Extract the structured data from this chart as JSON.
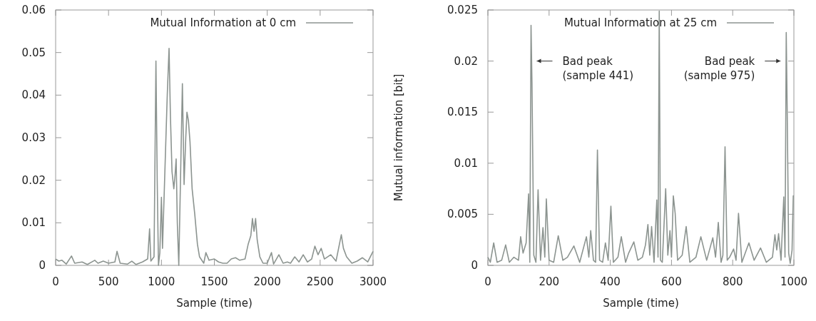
{
  "chart_data": [
    {
      "type": "line",
      "xlabel": "Sample (time)",
      "xlim": [
        0,
        3000
      ],
      "ylim": [
        0,
        0.06
      ],
      "xticks": [
        0,
        500,
        1000,
        1500,
        2000,
        2500,
        3000
      ],
      "yticks": [
        0,
        0.01,
        0.02,
        0.03,
        0.04,
        0.05,
        0.06
      ],
      "grid": false,
      "legend": "top right",
      "line_style": "solid",
      "series": [
        {
          "name": "Mutual Information at 0 cm",
          "color": "#8c9490",
          "x": [
            0,
            30,
            60,
            100,
            150,
            180,
            250,
            300,
            370,
            400,
            450,
            500,
            560,
            580,
            610,
            680,
            720,
            760,
            820,
            870,
            888,
            900,
            930,
            948,
            960,
            972,
            985,
            1000,
            1010,
            1030,
            1055,
            1072,
            1085,
            1100,
            1117,
            1128,
            1139,
            1150,
            1164,
            1180,
            1198,
            1214,
            1230,
            1241,
            1255,
            1270,
            1290,
            1315,
            1340,
            1360,
            1400,
            1420,
            1450,
            1500,
            1540,
            1580,
            1620,
            1660,
            1700,
            1740,
            1790,
            1820,
            1845,
            1860,
            1875,
            1890,
            1905,
            1930,
            1960,
            2000,
            2040,
            2060,
            2110,
            2150,
            2190,
            2220,
            2260,
            2300,
            2340,
            2380,
            2420,
            2450,
            2480,
            2510,
            2540,
            2600,
            2650,
            2700,
            2720,
            2750,
            2800,
            2850,
            2900,
            2950,
            3000
          ],
          "values": [
            0.0015,
            0.001,
            0.0012,
            0.0003,
            0.0022,
            0.0005,
            0.0008,
            0.0002,
            0.0012,
            0.0005,
            0.001,
            0.0005,
            0.0008,
            0.0033,
            0.0005,
            0.0003,
            0.001,
            0.0002,
            0.0008,
            0.0015,
            0.0086,
            0.001,
            0.002,
            0.048,
            0.02,
            0,
            0.003,
            0.016,
            0.004,
            0.02,
            0.04,
            0.051,
            0.035,
            0.022,
            0.018,
            0.021,
            0.025,
            0.01,
            0,
            0.02,
            0.0427,
            0.019,
            0.03,
            0.036,
            0.034,
            0.029,
            0.018,
            0.012,
            0.005,
            0.002,
            0.0005,
            0.003,
            0.0012,
            0.0015,
            0.0008,
            0.0005,
            0.0005,
            0.0015,
            0.0018,
            0.0012,
            0.0015,
            0.005,
            0.007,
            0.011,
            0.008,
            0.011,
            0.006,
            0.002,
            0.0005,
            0.0005,
            0.003,
            0.0003,
            0.0025,
            0.0005,
            0.0008,
            0.0005,
            0.002,
            0.0008,
            0.0025,
            0.0008,
            0.0015,
            0.0045,
            0.0025,
            0.004,
            0.0015,
            0.0025,
            0.001,
            0.0072,
            0.004,
            0.002,
            0.0005,
            0.001,
            0.0018,
            0.0008,
            0.0033
          ]
        }
      ]
    },
    {
      "type": "line",
      "xlabel": "Sample (time)",
      "ylabel": "Mutual information [bit]",
      "xlim": [
        0,
        1000
      ],
      "ylim": [
        0,
        0.025
      ],
      "xticks": [
        0,
        200,
        400,
        600,
        800,
        1000
      ],
      "yticks": [
        0,
        0.005,
        0.01,
        0.015,
        0.02,
        0.025
      ],
      "grid": false,
      "legend": "top right",
      "line_style": "solid",
      "annotations": [
        {
          "text": "Bad peak\n(sample 441)",
          "x": 141,
          "y": 0.02
        },
        {
          "text": "Bad peak\n(sample 975)",
          "x": 975,
          "y": 0.02
        }
      ],
      "series": [
        {
          "name": "Mutual Information at 25 cm",
          "color": "#8c9490",
          "x": [
            0,
            8,
            19,
            30,
            45,
            58,
            70,
            85,
            100,
            107,
            115,
            125,
            133,
            137,
            141,
            144,
            150,
            157,
            164,
            172,
            180,
            186,
            191,
            200,
            215,
            230,
            245,
            260,
            281,
            300,
            322,
            330,
            336,
            345,
            352,
            358,
            365,
            375,
            384,
            393,
            402,
            410,
            425,
            436,
            450,
            460,
            477,
            490,
            505,
            515,
            523,
            529,
            535,
            543,
            552,
            556,
            560,
            564,
            570,
            581,
            588,
            595,
            600,
            606,
            612,
            620,
            635,
            648,
            660,
            680,
            696,
            715,
            735,
            744,
            753,
            762,
            768,
            775,
            782,
            790,
            803,
            811,
            819,
            830,
            853,
            870,
            891,
            910,
            930,
            938,
            944,
            950,
            958,
            967,
            971,
            975,
            978,
            983,
            988,
            994,
            998,
            1000
          ],
          "values": [
            0.0008,
            0.0003,
            0.0022,
            0.0003,
            0.0005,
            0.002,
            0.0003,
            0.0008,
            0.0005,
            0.0028,
            0.0012,
            0.0022,
            0.007,
            0.0003,
            0.0235,
            0.018,
            0.001,
            0.0003,
            0.0074,
            0.0005,
            0.0037,
            0.0008,
            0.0065,
            0.0005,
            0.0003,
            0.0029,
            0.0005,
            0.0008,
            0.0019,
            0.0003,
            0.0028,
            0.0008,
            0.0034,
            0.0005,
            0.0003,
            0.0113,
            0.0005,
            0.0003,
            0.0022,
            0.0005,
            0.0058,
            0.0003,
            0.0008,
            0.0028,
            0.0003,
            0.0012,
            0.0023,
            0.0005,
            0.0008,
            0.002,
            0.004,
            0.001,
            0.0038,
            0.0003,
            0.0064,
            0.0008,
            0.0249,
            0.0005,
            0.0003,
            0.0075,
            0.001,
            0.0034,
            0.0008,
            0.0068,
            0.0051,
            0.0005,
            0.001,
            0.0038,
            0.0003,
            0.0008,
            0.0028,
            0.0005,
            0.0027,
            0.0008,
            0.0042,
            0.0003,
            0.001,
            0.0116,
            0.0005,
            0.0008,
            0.0016,
            0.0005,
            0.0051,
            0.0003,
            0.0022,
            0.0005,
            0.0017,
            0.0003,
            0.0008,
            0.003,
            0.0015,
            0.0031,
            0.0005,
            0.0067,
            0.0008,
            0.0228,
            0.0155,
            0.0012,
            0.0002,
            0.0015,
            0.0068,
            0.0068
          ]
        }
      ]
    }
  ]
}
